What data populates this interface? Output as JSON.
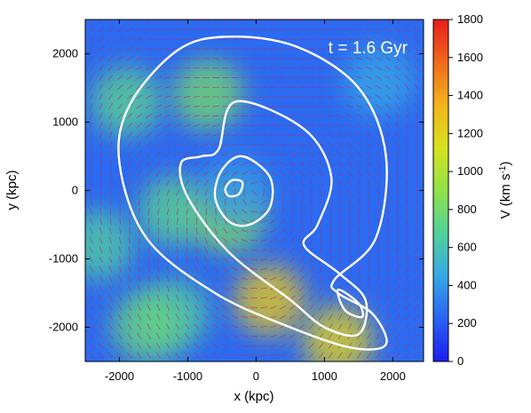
{
  "chart_data": {
    "type": "heatmap",
    "xlabel": "x (kpc)",
    "ylabel": "y (kpc)",
    "xlim": [
      -2500,
      2450
    ],
    "ylim": [
      -2500,
      2500
    ],
    "x_ticks": [
      -2000,
      -1000,
      0,
      1000,
      2000
    ],
    "y_ticks": [
      -2000,
      -1000,
      0,
      1000,
      2000
    ],
    "annotation": "t = 1.6 Gyr",
    "colorbar": {
      "label": "V (km s",
      "label_sup": "-1",
      "label_close": ")",
      "range": [
        0,
        1800
      ],
      "ticks": [
        0,
        200,
        400,
        600,
        800,
        1000,
        1200,
        1400,
        1600,
        1800
      ],
      "colors": [
        "#1c1cf0",
        "#2a62f2",
        "#35a8e6",
        "#52d19a",
        "#8fe24a",
        "#d6e21e",
        "#f2b41a",
        "#f06a1c",
        "#e81c1c"
      ]
    },
    "background_value": 250,
    "velocity_features": [
      {
        "x": -700,
        "y": 1400,
        "value": 800
      },
      {
        "x": -1900,
        "y": 1300,
        "value": 700
      },
      {
        "x": -1200,
        "y": -300,
        "value": 700
      },
      {
        "x": -400,
        "y": -400,
        "value": 850
      },
      {
        "x": 200,
        "y": -1600,
        "value": 1250
      },
      {
        "x": 1200,
        "y": -2200,
        "value": 1200
      },
      {
        "x": -1200,
        "y": -1800,
        "value": 650
      },
      {
        "x": -1600,
        "y": -2000,
        "value": 750
      },
      {
        "x": -2300,
        "y": -800,
        "value": 650
      },
      {
        "x": 1800,
        "y": 1600,
        "value": 450
      },
      {
        "x": -300,
        "y": 0,
        "value": 400
      }
    ],
    "contours": [
      [
        [
          -1150,
          2050
        ],
        [
          -400,
          2250
        ],
        [
          600,
          2100
        ],
        [
          1500,
          1500
        ],
        [
          1900,
          500
        ],
        [
          1750,
          -700
        ],
        [
          1150,
          -1300
        ],
        [
          1200,
          -1500
        ],
        [
          1700,
          -1800
        ],
        [
          1900,
          -2250
        ],
        [
          1400,
          -2300
        ],
        [
          500,
          -2000
        ],
        [
          -600,
          -1500
        ],
        [
          -1600,
          -700
        ],
        [
          -2000,
          400
        ],
        [
          -1850,
          1250
        ]
      ],
      [
        [
          -300,
          1300
        ],
        [
          700,
          900
        ],
        [
          1100,
          200
        ],
        [
          900,
          -500
        ],
        [
          700,
          -800
        ],
        [
          1200,
          -1200
        ],
        [
          1600,
          -1600
        ],
        [
          1500,
          -2100
        ],
        [
          1000,
          -2000
        ],
        [
          500,
          -1600
        ],
        [
          -400,
          -900
        ],
        [
          -1000,
          -100
        ],
        [
          -1100,
          400
        ],
        [
          -800,
          500
        ],
        [
          -550,
          600
        ]
      ],
      [
        [
          -200,
          500
        ],
        [
          200,
          200
        ],
        [
          200,
          -250
        ],
        [
          -100,
          -500
        ],
        [
          -400,
          -450
        ],
        [
          -600,
          -100
        ],
        [
          -500,
          300
        ]
      ],
      [
        [
          -350,
          150
        ],
        [
          -200,
          120
        ],
        [
          -250,
          -50
        ],
        [
          -400,
          -80
        ],
        [
          -450,
          30
        ]
      ],
      [
        [
          1200,
          -1450
        ],
        [
          1500,
          -1650
        ],
        [
          1550,
          -1850
        ],
        [
          1300,
          -1750
        ]
      ]
    ]
  }
}
